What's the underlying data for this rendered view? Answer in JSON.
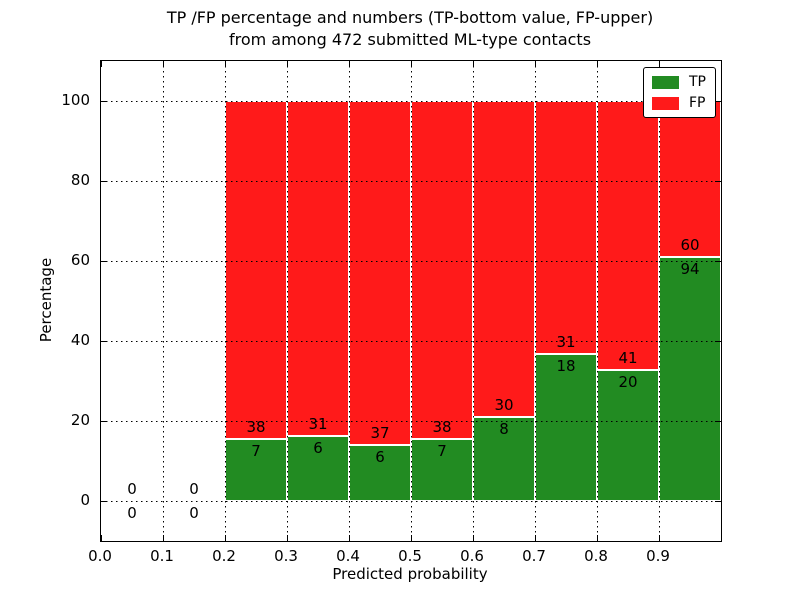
{
  "title": {
    "line1": "TP /FP percentage and numbers (TP-bottom value, FP-upper)",
    "line2": "from among 472 submitted ML-type contacts"
  },
  "axes": {
    "ylabel": "Percentage",
    "xlabel": "Predicted probability",
    "xlim": [
      0,
      1
    ],
    "ylim": [
      -10,
      110
    ],
    "x_ticks": [
      {
        "value": 0.0,
        "label": "0.0"
      },
      {
        "value": 0.1,
        "label": "0.1"
      },
      {
        "value": 0.2,
        "label": "0.2"
      },
      {
        "value": 0.3,
        "label": "0.3"
      },
      {
        "value": 0.4,
        "label": "0.4"
      },
      {
        "value": 0.5,
        "label": "0.5"
      },
      {
        "value": 0.6,
        "label": "0.6"
      },
      {
        "value": 0.7,
        "label": "0.7"
      },
      {
        "value": 0.8,
        "label": "0.8"
      },
      {
        "value": 0.9,
        "label": "0.9"
      }
    ],
    "y_ticks": [
      {
        "value": 0,
        "label": "0"
      },
      {
        "value": 20,
        "label": "20"
      },
      {
        "value": 40,
        "label": "40"
      },
      {
        "value": 60,
        "label": "60"
      },
      {
        "value": 80,
        "label": "80"
      },
      {
        "value": 100,
        "label": "100"
      }
    ],
    "grid": true
  },
  "legend": {
    "position": "upper-right",
    "items": [
      {
        "label": "TP",
        "color": "#228b22"
      },
      {
        "label": "FP",
        "color": "#ff1a1a"
      }
    ]
  },
  "colors": {
    "tp": "#228b22",
    "fp": "#ff1a1a",
    "bar_edge": "#ffffff",
    "grid": "#000000"
  },
  "chart_data": {
    "type": "bar",
    "stacked": true,
    "title": "TP /FP percentage and numbers (TP-bottom value, FP-upper) from among 472 submitted ML-type contacts",
    "xlabel": "Predicted probability",
    "ylabel": "Percentage",
    "total_contacts": 472,
    "bin_width": 0.1,
    "series_names": [
      "TP",
      "FP"
    ],
    "bins": [
      {
        "x0": 0.0,
        "x1": 0.1,
        "tp": 0,
        "fp": 0,
        "tp_pct": 0,
        "fp_pct": 0
      },
      {
        "x0": 0.1,
        "x1": 0.2,
        "tp": 0,
        "fp": 0,
        "tp_pct": 0,
        "fp_pct": 0
      },
      {
        "x0": 0.2,
        "x1": 0.3,
        "tp": 7,
        "fp": 38,
        "tp_pct": 15.56,
        "fp_pct": 84.44
      },
      {
        "x0": 0.3,
        "x1": 0.4,
        "tp": 6,
        "fp": 31,
        "tp_pct": 16.22,
        "fp_pct": 83.78
      },
      {
        "x0": 0.4,
        "x1": 0.5,
        "tp": 6,
        "fp": 37,
        "tp_pct": 13.95,
        "fp_pct": 86.05
      },
      {
        "x0": 0.5,
        "x1": 0.6,
        "tp": 7,
        "fp": 38,
        "tp_pct": 15.56,
        "fp_pct": 84.44
      },
      {
        "x0": 0.6,
        "x1": 0.7,
        "tp": 8,
        "fp": 30,
        "tp_pct": 21.05,
        "fp_pct": 78.95
      },
      {
        "x0": 0.7,
        "x1": 0.8,
        "tp": 18,
        "fp": 31,
        "tp_pct": 36.73,
        "fp_pct": 63.27
      },
      {
        "x0": 0.8,
        "x1": 0.9,
        "tp": 20,
        "fp": 41,
        "tp_pct": 32.79,
        "fp_pct": 67.21
      },
      {
        "x0": 0.9,
        "x1": 1.0,
        "tp": 94,
        "fp": 60,
        "tp_pct": 61.04,
        "fp_pct": 38.96
      }
    ]
  }
}
